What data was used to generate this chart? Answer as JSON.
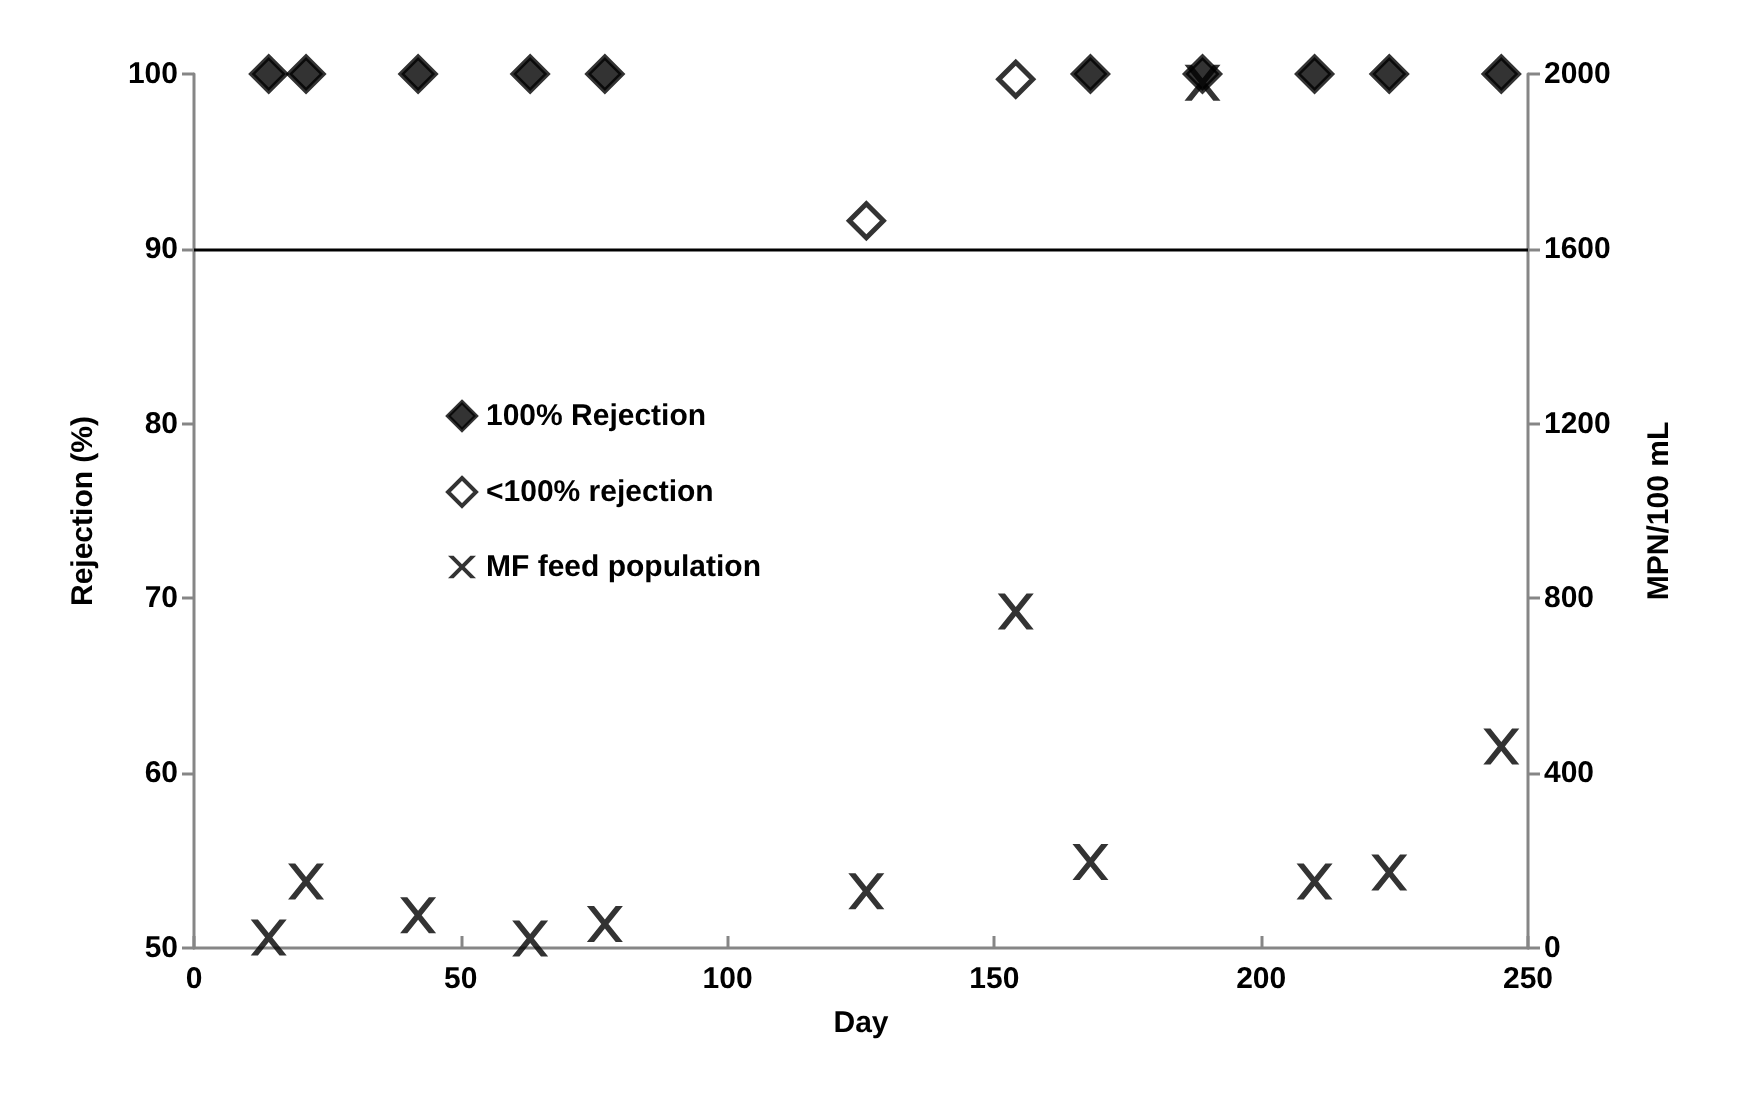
{
  "chart_data": {
    "type": "scatter",
    "xlabel": "Day",
    "ylabel": "Rejection (%)",
    "y2label": "MPN/100 mL",
    "xlim": [
      0,
      250
    ],
    "xticks": [
      0,
      50,
      100,
      150,
      200,
      250
    ],
    "ylim": [
      50,
      100
    ],
    "yticks": [
      50,
      60,
      70,
      80,
      90,
      100
    ],
    "y2lim": [
      0,
      2000
    ],
    "y2ticks": [
      0,
      400,
      800,
      1200,
      1600,
      2000
    ],
    "grid": false,
    "legend": "left",
    "ref_lines": [
      {
        "axis": "y",
        "value": 90,
        "color": "#000000",
        "line_style": "solid"
      }
    ],
    "series": [
      {
        "name": "100% Rejection",
        "color": "#000000",
        "marker": "diamond",
        "x": [
          14,
          21,
          42,
          63,
          77,
          168,
          189,
          210,
          224,
          245
        ],
        "values": [
          100,
          100,
          100,
          100,
          100,
          100,
          100,
          100,
          100,
          100
        ]
      },
      {
        "name": "<100% rejection",
        "color": "#ffffff",
        "marker": "diamond",
        "x": [
          126,
          154
        ],
        "values": [
          91.6,
          99.7
        ]
      },
      {
        "name": "MF feed population",
        "color": "#000000",
        "marker": "cross",
        "axis": "y2",
        "x": [
          14,
          21,
          42,
          63,
          77,
          126,
          154,
          168,
          189,
          210,
          224,
          245
        ],
        "values": [
          24,
          152,
          75,
          22,
          55,
          130,
          770,
          197,
          1980,
          152,
          173,
          461
        ]
      }
    ]
  }
}
